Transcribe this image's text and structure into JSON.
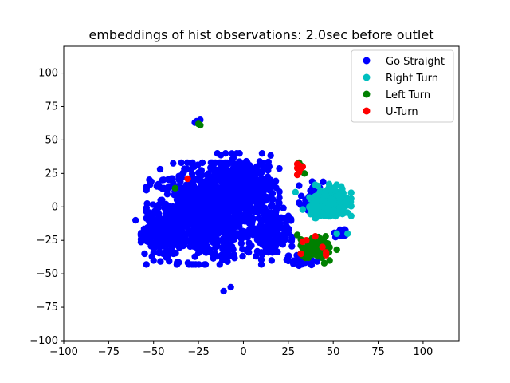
{
  "chart_data": {
    "type": "scatter",
    "title": "embeddings of hist observations: 2.0sec before outlet",
    "xlabel": "",
    "ylabel": "",
    "xlim": [
      -100,
      120
    ],
    "ylim": [
      -100,
      120
    ],
    "xticks": [
      -100,
      -75,
      -50,
      -25,
      0,
      25,
      50,
      75,
      100
    ],
    "yticks": [
      -100,
      -75,
      -50,
      -25,
      0,
      25,
      50,
      75,
      100
    ],
    "grid": false,
    "legend_position": "top-right",
    "series": [
      {
        "name": "Go Straight",
        "color": "#0000ff",
        "clusters": [
          {
            "cx": -22,
            "cy": -5,
            "rx": 32,
            "ry": 38,
            "n": 900
          },
          {
            "cx": 0,
            "cy": 15,
            "rx": 20,
            "ry": 25,
            "n": 350
          },
          {
            "cx": -45,
            "cy": -20,
            "rx": 12,
            "ry": 15,
            "n": 150
          },
          {
            "cx": 15,
            "cy": -20,
            "rx": 12,
            "ry": 20,
            "n": 150
          },
          {
            "cx": 38,
            "cy": 5,
            "rx": 7,
            "ry": 15,
            "n": 40
          },
          {
            "cx": 55,
            "cy": -20,
            "rx": 5,
            "ry": 4,
            "n": 20
          },
          {
            "cx": 33,
            "cy": -40,
            "rx": 8,
            "ry": 4,
            "n": 20
          }
        ],
        "points": [
          [
            -26,
            64
          ],
          [
            -25,
            63
          ],
          [
            -24,
            65
          ],
          [
            -27,
            63
          ],
          [
            -50,
            -40
          ],
          [
            -55,
            -35
          ],
          [
            -7,
            -60
          ],
          [
            -11,
            -63
          ],
          [
            -60,
            -10
          ]
        ]
      },
      {
        "name": "Right Turn",
        "color": "#00bfbf",
        "clusters": [
          {
            "cx": 50,
            "cy": 5,
            "rx": 10,
            "ry": 12,
            "n": 260
          },
          {
            "cx": 40,
            "cy": -2,
            "rx": 5,
            "ry": 9,
            "n": 40
          }
        ],
        "points": [
          [
            29,
            11
          ],
          [
            52,
            -20
          ],
          [
            58,
            -20
          ],
          [
            33,
            -2
          ]
        ]
      },
      {
        "name": "Left Turn",
        "color": "#008000",
        "clusters": [
          {
            "cx": 40,
            "cy": -30,
            "rx": 8,
            "ry": 8,
            "n": 130
          }
        ],
        "points": [
          [
            -25,
            62
          ],
          [
            -24,
            61
          ],
          [
            -38,
            14
          ],
          [
            31,
            33
          ],
          [
            32,
            31
          ],
          [
            34,
            25
          ],
          [
            30,
            -21
          ],
          [
            45,
            -42
          ],
          [
            48,
            -40
          ],
          [
            52,
            -32
          ]
        ]
      },
      {
        "name": "U-Turn",
        "color": "#ff0000",
        "points": [
          [
            -31,
            21
          ],
          [
            30,
            24
          ],
          [
            31,
            27
          ],
          [
            30,
            29
          ],
          [
            31,
            31
          ],
          [
            32,
            29
          ],
          [
            31,
            26
          ],
          [
            33,
            30
          ],
          [
            33,
            -26
          ],
          [
            35,
            -25
          ],
          [
            40,
            -22
          ],
          [
            46,
            -34
          ],
          [
            46,
            -36
          ],
          [
            32,
            -35
          ],
          [
            44,
            -30
          ],
          [
            30,
            32
          ]
        ]
      }
    ]
  }
}
